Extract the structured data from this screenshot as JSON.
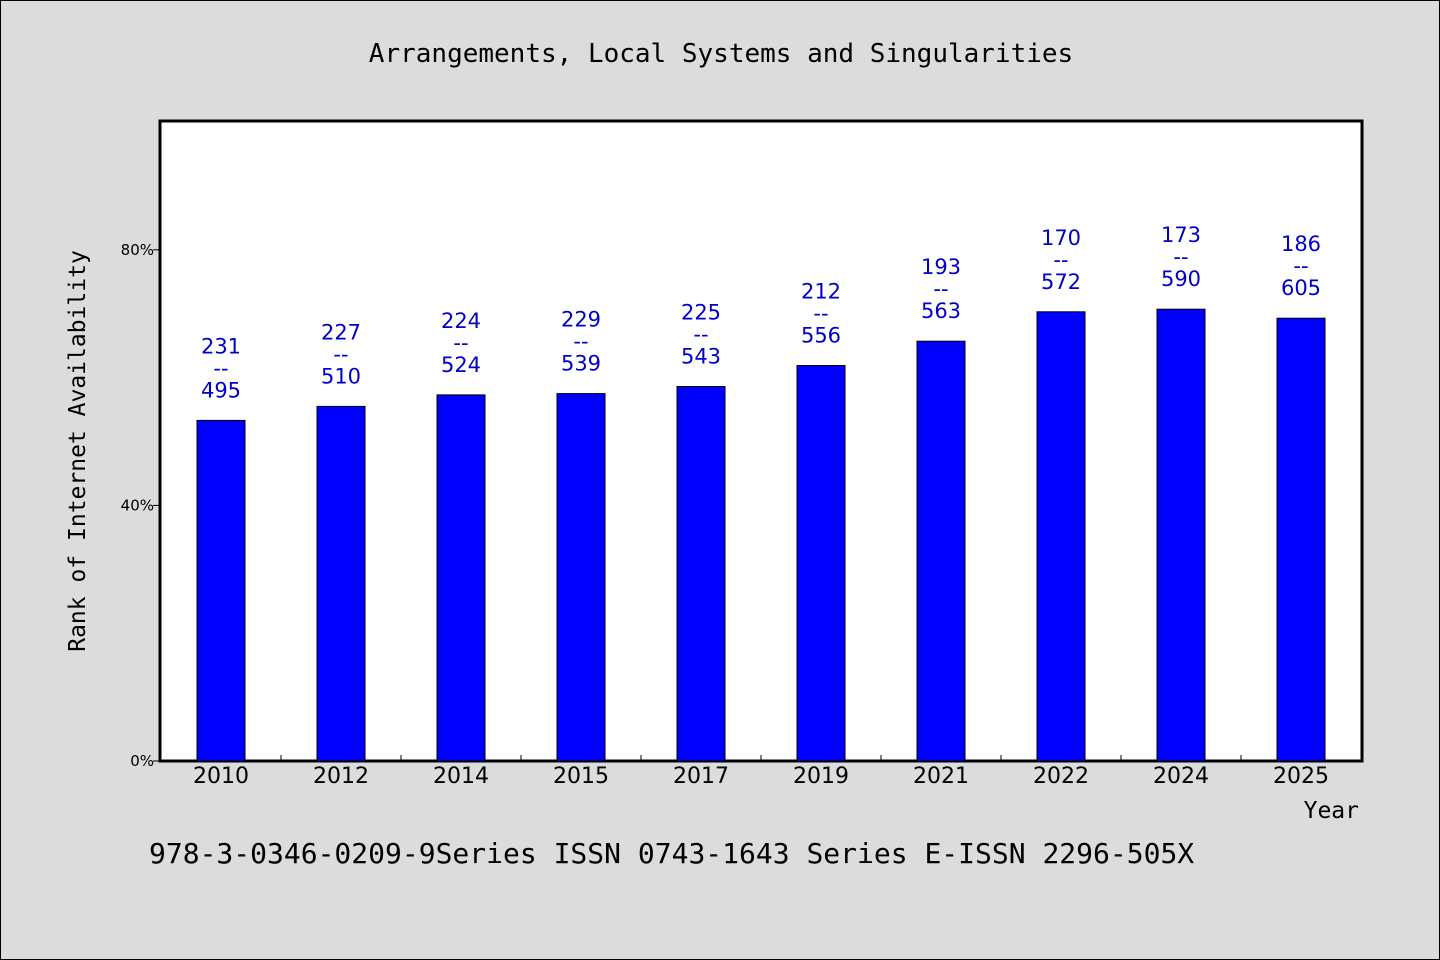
{
  "colors": {
    "background": "#dcdcdc",
    "plot_background": "#ffffff",
    "bar": "#0000ff",
    "bar_outline": "#000000",
    "label": "#0000cc"
  },
  "caption": "978-3-0346-0209-9Series ISSN 0743-1643 Series E-ISSN 2296-505X",
  "chart_data": {
    "type": "bar",
    "title": "Arrangements, Local Systems and Singularities",
    "xlabel": "Year",
    "ylabel": "Rank of Internet Availability",
    "ylim": [
      0,
      100
    ],
    "yticks": [
      0,
      40,
      80
    ],
    "ytick_labels": [
      "0%",
      "40%",
      "80%"
    ],
    "grid": false,
    "categories": [
      "2010",
      "2012",
      "2014",
      "2015",
      "2017",
      "2019",
      "2021",
      "2022",
      "2024",
      "2025"
    ],
    "values": [
      53.3,
      55.5,
      57.3,
      57.5,
      58.6,
      61.9,
      65.7,
      70.3,
      70.7,
      69.3
    ],
    "data_labels": [
      [
        "231",
        "--",
        "495"
      ],
      [
        "227",
        "--",
        "510"
      ],
      [
        "224",
        "--",
        "524"
      ],
      [
        "229",
        "--",
        "539"
      ],
      [
        "225",
        "--",
        "543"
      ],
      [
        "212",
        "--",
        "556"
      ],
      [
        "193",
        "--",
        "563"
      ],
      [
        "170",
        "--",
        "572"
      ],
      [
        "173",
        "--",
        "590"
      ],
      [
        "186",
        "--",
        "605"
      ]
    ]
  }
}
